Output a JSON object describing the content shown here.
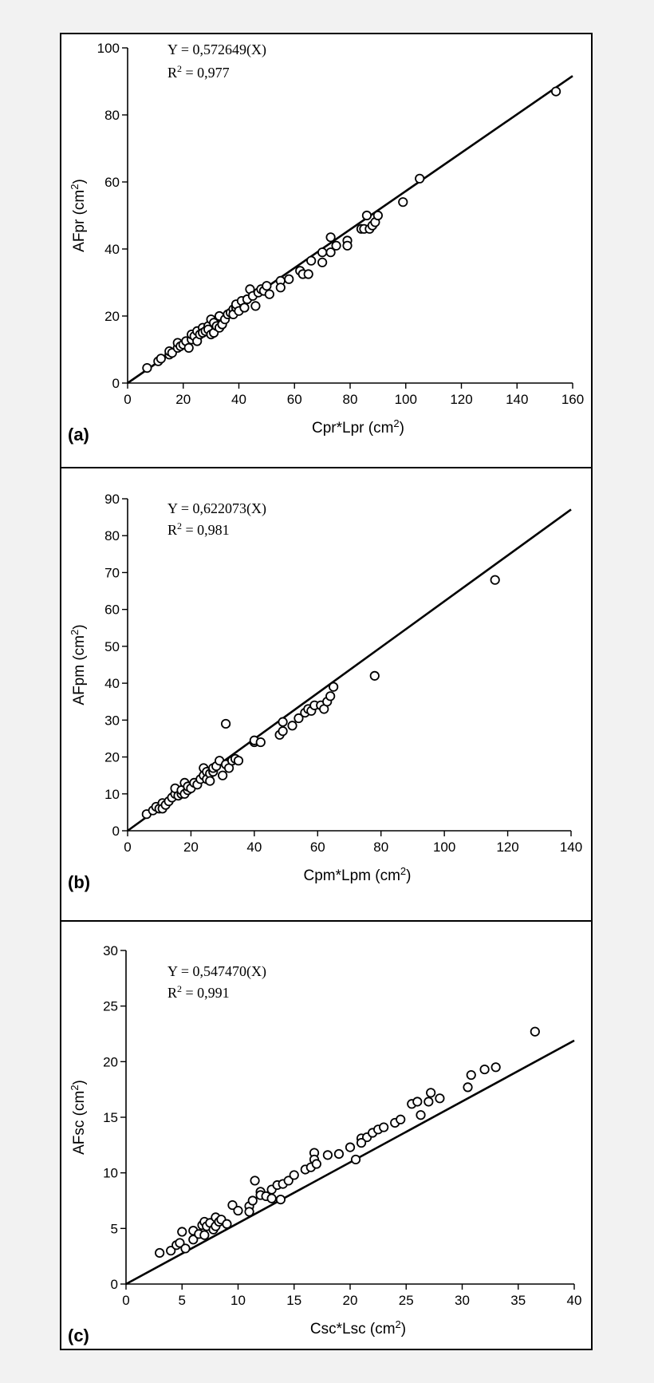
{
  "chart_data": [
    {
      "type": "scatter",
      "panel_label": "(a)",
      "xlabel": "Cpr*Lpr (cm",
      "xlabel_sup": "2",
      "xlabel_end": ")",
      "ylabel": "AFpr (cm",
      "ylabel_sup": "2",
      "ylabel_end": ")",
      "equation": "Y = 0,572649(X)",
      "r2_prefix": "R",
      "r2_sup": "2",
      "r2_value": " = 0,977",
      "slope": 0.572649,
      "xlim": [
        0,
        160
      ],
      "ylim": [
        0,
        100
      ],
      "xticks": [
        0,
        20,
        40,
        60,
        80,
        100,
        120,
        140,
        160
      ],
      "yticks": [
        0,
        20,
        40,
        60,
        80,
        100
      ],
      "fit_x": [
        0,
        160
      ],
      "points": [
        [
          7,
          4.5
        ],
        [
          11,
          6.5
        ],
        [
          12,
          7.3
        ],
        [
          15,
          8.5
        ],
        [
          15,
          9.5
        ],
        [
          16,
          9
        ],
        [
          18,
          10.5
        ],
        [
          18,
          12
        ],
        [
          19,
          11
        ],
        [
          20,
          11.5
        ],
        [
          21,
          12.5
        ],
        [
          22,
          10.5
        ],
        [
          23,
          13
        ],
        [
          23,
          14.5
        ],
        [
          24,
          14
        ],
        [
          25,
          15.5
        ],
        [
          25,
          12.5
        ],
        [
          26,
          14.5
        ],
        [
          27,
          16.5
        ],
        [
          27,
          15
        ],
        [
          28,
          15.5
        ],
        [
          29,
          17
        ],
        [
          29,
          16
        ],
        [
          30,
          19
        ],
        [
          30,
          14.5
        ],
        [
          31,
          18
        ],
        [
          31,
          15
        ],
        [
          32,
          17
        ],
        [
          33,
          16.5
        ],
        [
          33,
          20
        ],
        [
          34,
          17.5
        ],
        [
          35,
          19
        ],
        [
          36,
          20.5
        ],
        [
          37,
          21
        ],
        [
          38,
          22
        ],
        [
          38,
          20.5
        ],
        [
          39,
          22.5
        ],
        [
          39,
          23.5
        ],
        [
          40,
          21.5
        ],
        [
          41,
          24.5
        ],
        [
          42,
          22.5
        ],
        [
          43,
          25
        ],
        [
          44,
          28
        ],
        [
          45,
          26
        ],
        [
          46,
          23
        ],
        [
          47,
          27
        ],
        [
          48,
          28
        ],
        [
          49,
          27.5
        ],
        [
          50,
          29
        ],
        [
          51,
          26.5
        ],
        [
          55,
          30.5
        ],
        [
          55,
          28.5
        ],
        [
          58,
          31
        ],
        [
          62,
          33.5
        ],
        [
          63,
          32.5
        ],
        [
          65,
          32.5
        ],
        [
          66,
          36.5
        ],
        [
          70,
          39
        ],
        [
          70,
          36
        ],
        [
          73,
          43.5
        ],
        [
          73,
          39
        ],
        [
          75,
          41
        ],
        [
          79,
          42.5
        ],
        [
          79,
          41
        ],
        [
          84,
          46
        ],
        [
          85,
          46
        ],
        [
          86,
          50
        ],
        [
          87,
          46
        ],
        [
          88,
          47
        ],
        [
          89,
          48
        ],
        [
          90,
          50
        ],
        [
          99,
          54
        ],
        [
          105,
          61
        ],
        [
          154,
          87
        ]
      ]
    },
    {
      "type": "scatter",
      "panel_label": "(b)",
      "xlabel": "Cpm*Lpm (cm",
      "xlabel_sup": "2",
      "xlabel_end": ")",
      "ylabel": "AFpm (cm",
      "ylabel_sup": "2",
      "ylabel_end": ")",
      "equation": "Y = 0,622073(X)",
      "r2_prefix": "R",
      "r2_sup": "2",
      "r2_value": " = 0,981",
      "slope": 0.622073,
      "xlim": [
        0,
        140
      ],
      "ylim": [
        0,
        90
      ],
      "xticks": [
        0,
        20,
        40,
        60,
        80,
        100,
        120,
        140
      ],
      "yticks": [
        0,
        10,
        20,
        30,
        40,
        50,
        60,
        70,
        80,
        90
      ],
      "fit_x": [
        0,
        140
      ],
      "points": [
        [
          6,
          4.5
        ],
        [
          8,
          5.5
        ],
        [
          9,
          6.5
        ],
        [
          10,
          6
        ],
        [
          11,
          7.5
        ],
        [
          11,
          6
        ],
        [
          12,
          7
        ],
        [
          13,
          8
        ],
        [
          14,
          9
        ],
        [
          15,
          10
        ],
        [
          15,
          11.5
        ],
        [
          16,
          9.5
        ],
        [
          17,
          10
        ],
        [
          17,
          11
        ],
        [
          18,
          13
        ],
        [
          18,
          10
        ],
        [
          19,
          11
        ],
        [
          19,
          12
        ],
        [
          20,
          11.5
        ],
        [
          21,
          13
        ],
        [
          22,
          12.5
        ],
        [
          23,
          14
        ],
        [
          24,
          15
        ],
        [
          24,
          17
        ],
        [
          25,
          16
        ],
        [
          25,
          14
        ],
        [
          26,
          15.5
        ],
        [
          26,
          13.5
        ],
        [
          27,
          16
        ],
        [
          27,
          17
        ],
        [
          28,
          17.5
        ],
        [
          29,
          19
        ],
        [
          30,
          15
        ],
        [
          31,
          18
        ],
        [
          31,
          29
        ],
        [
          32,
          17
        ],
        [
          33,
          19
        ],
        [
          34,
          19.5
        ],
        [
          35,
          19
        ],
        [
          40,
          24
        ],
        [
          40,
          24.5
        ],
        [
          42,
          24
        ],
        [
          48,
          26
        ],
        [
          49,
          27
        ],
        [
          49,
          29.5
        ],
        [
          52,
          28.5
        ],
        [
          54,
          30.5
        ],
        [
          56,
          32
        ],
        [
          57,
          33
        ],
        [
          58,
          32.5
        ],
        [
          59,
          34
        ],
        [
          61,
          34
        ],
        [
          62,
          33
        ],
        [
          63,
          35
        ],
        [
          64,
          36.5
        ],
        [
          65,
          39
        ],
        [
          78,
          42
        ],
        [
          116,
          68
        ]
      ]
    },
    {
      "type": "scatter",
      "panel_label": "(c)",
      "xlabel": "Csc*Lsc (cm",
      "xlabel_sup": "2",
      "xlabel_end": ")",
      "ylabel": "AFsc (cm",
      "ylabel_sup": "2",
      "ylabel_end": ")",
      "equation": "Y = 0,547470(X)",
      "r2_prefix": "R",
      "r2_sup": "2",
      "r2_value": " = 0,991",
      "slope": 0.54747,
      "xlim": [
        0,
        40
      ],
      "ylim": [
        0,
        30
      ],
      "xticks": [
        0,
        5,
        10,
        15,
        20,
        25,
        30,
        35,
        40
      ],
      "yticks": [
        0,
        5,
        10,
        15,
        20,
        25,
        30
      ],
      "fit_x": [
        0,
        40
      ],
      "points": [
        [
          3,
          2.8
        ],
        [
          4,
          3
        ],
        [
          4.5,
          3.5
        ],
        [
          4.8,
          3.7
        ],
        [
          5,
          4.7
        ],
        [
          5.3,
          3.2
        ],
        [
          6,
          4.8
        ],
        [
          6,
          4
        ],
        [
          6.5,
          4.5
        ],
        [
          6.8,
          5.3
        ],
        [
          7,
          5.6
        ],
        [
          7,
          4.4
        ],
        [
          7.2,
          5.2
        ],
        [
          7.5,
          5.5
        ],
        [
          7.8,
          4.9
        ],
        [
          8,
          6
        ],
        [
          8,
          5.2
        ],
        [
          8.3,
          5.6
        ],
        [
          8.5,
          5.8
        ],
        [
          9,
          5.4
        ],
        [
          9.5,
          7.1
        ],
        [
          10,
          6.6
        ],
        [
          11,
          7
        ],
        [
          11,
          6.5
        ],
        [
          11.3,
          7.5
        ],
        [
          11.5,
          9.3
        ],
        [
          12,
          8.3
        ],
        [
          12,
          8
        ],
        [
          12.5,
          7.9
        ],
        [
          13,
          8.5
        ],
        [
          13,
          7.7
        ],
        [
          13.5,
          8.9
        ],
        [
          13.8,
          7.6
        ],
        [
          14,
          9
        ],
        [
          14.5,
          9.3
        ],
        [
          15,
          9.8
        ],
        [
          16,
          10.3
        ],
        [
          16.5,
          10.5
        ],
        [
          16.8,
          11.8
        ],
        [
          16.8,
          11.2
        ],
        [
          17,
          10.8
        ],
        [
          18,
          11.6
        ],
        [
          19,
          11.7
        ],
        [
          20,
          12.3
        ],
        [
          20.5,
          11.2
        ],
        [
          21,
          13.1
        ],
        [
          21.5,
          13.2
        ],
        [
          21,
          12.7
        ],
        [
          22,
          13.6
        ],
        [
          22.5,
          13.9
        ],
        [
          23,
          14.1
        ],
        [
          24,
          14.5
        ],
        [
          24.5,
          14.8
        ],
        [
          25.5,
          16.2
        ],
        [
          26,
          16.4
        ],
        [
          26.3,
          15.2
        ],
        [
          27,
          16.4
        ],
        [
          27.2,
          17.2
        ],
        [
          28,
          16.7
        ],
        [
          30.5,
          17.7
        ],
        [
          30.8,
          18.8
        ],
        [
          32,
          19.3
        ],
        [
          33,
          19.5
        ],
        [
          36.5,
          22.7
        ]
      ]
    }
  ]
}
